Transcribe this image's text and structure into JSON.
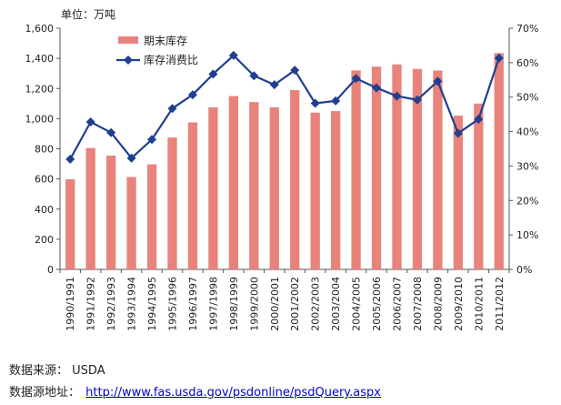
{
  "chart_data": {
    "type": "bar+line",
    "unit_label": "单位：万吨",
    "categories": [
      "1990/1991",
      "1991/1992",
      "1992/1993",
      "1993/1994",
      "1994/1995",
      "1995/1996",
      "1996/1997",
      "1997/1998",
      "1998/1999",
      "1999/2000",
      "2000/2001",
      "2001/2002",
      "2002/2003",
      "2003/2004",
      "2004/2005",
      "2005/2006",
      "2006/2007",
      "2007/2008",
      "2008/2009",
      "2009/2010",
      "2010/2011",
      "2011/2012"
    ],
    "series": [
      {
        "name": "期末库存",
        "type": "bar",
        "axis": "left",
        "color": "#e8837c",
        "values": [
          598,
          805,
          755,
          613,
          697,
          875,
          975,
          1075,
          1150,
          1110,
          1075,
          1190,
          1040,
          1050,
          1320,
          1345,
          1360,
          1330,
          1320,
          1020,
          1100,
          1435
        ]
      },
      {
        "name": "库存消费比",
        "type": "line",
        "axis": "right",
        "color": "#1f3f91",
        "marker": "diamond",
        "values": [
          32,
          42.8,
          39.7,
          32.3,
          37.7,
          46.7,
          50.7,
          56.7,
          62.1,
          56.2,
          53.6,
          57.8,
          48.2,
          48.9,
          55.4,
          52.7,
          50.3,
          49.2,
          54.6,
          39.5,
          43.6,
          61.3
        ]
      }
    ],
    "left_axis": {
      "min": 0,
      "max": 1600,
      "ticks": [
        0,
        200,
        400,
        600,
        800,
        1000,
        1200,
        1400,
        1600
      ],
      "tick_labels": [
        "0",
        "200",
        "400",
        "600",
        "800",
        "1,000",
        "1,200",
        "1,400",
        "1,600"
      ]
    },
    "right_axis": {
      "min": 0,
      "max": 70,
      "ticks": [
        0,
        10,
        20,
        30,
        40,
        50,
        60,
        70
      ],
      "tick_labels": [
        "0%",
        "10%",
        "20%",
        "30%",
        "40%",
        "50%",
        "60%",
        "70%"
      ]
    },
    "grid": false,
    "legend_position": "top-left"
  },
  "footer": {
    "source_label": "数据来源：",
    "source_value": "USDA",
    "url_label": "数据源地址：",
    "url_value": "http://www.fas.usda.gov/psdonline/psdQuery.aspx"
  }
}
